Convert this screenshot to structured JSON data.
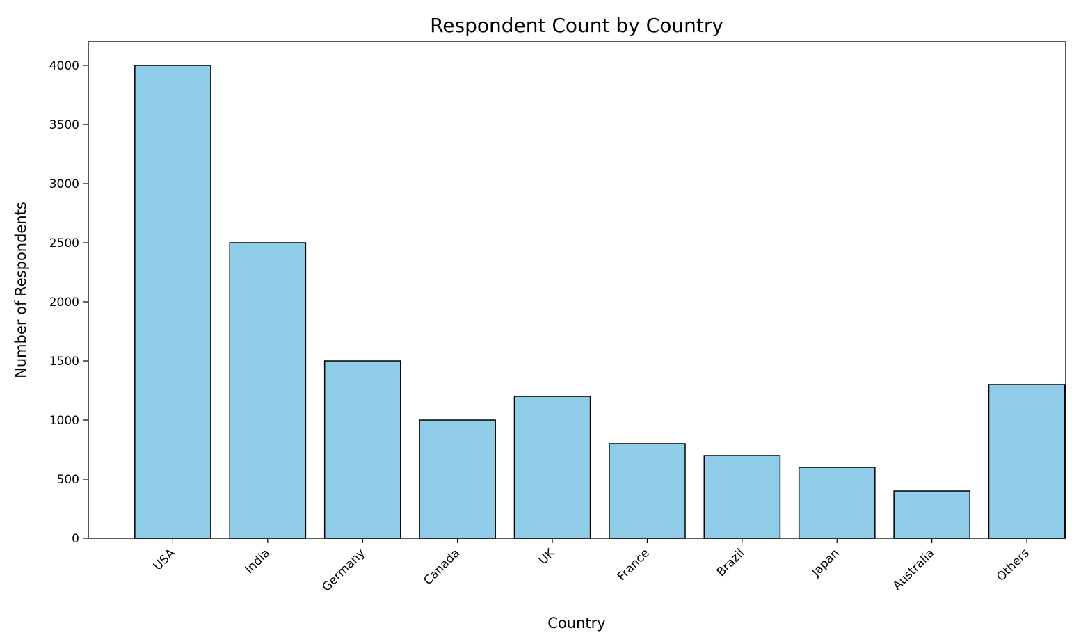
{
  "chart_data": {
    "type": "bar",
    "title": "Respondent Count by Country",
    "xlabel": "Country",
    "ylabel": "Number of Respondents",
    "categories": [
      "USA",
      "India",
      "Germany",
      "Canada",
      "UK",
      "France",
      "Brazil",
      "Japan",
      "Australia",
      "Others"
    ],
    "values": [
      4000,
      2500,
      1500,
      1000,
      1200,
      800,
      700,
      600,
      400,
      1300
    ],
    "ylim": [
      0,
      4200
    ],
    "yticks": [
      0,
      500,
      1000,
      1500,
      2000,
      2500,
      3000,
      3500,
      4000
    ],
    "x_tick_rotation": "45 degrees",
    "grid": false,
    "legend": "none",
    "bar_color": "#8ecce8",
    "bar_edge_color": "#000000"
  }
}
